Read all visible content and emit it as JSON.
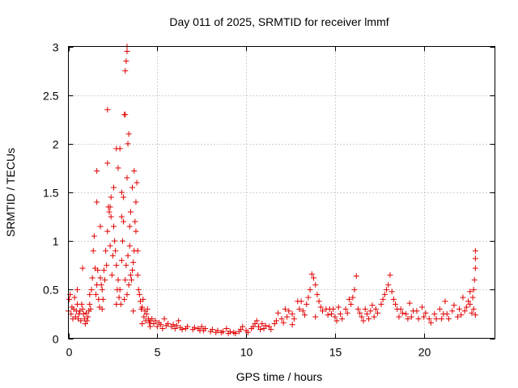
{
  "chart_data": {
    "type": "scatter",
    "title": "Day 011 of 2025, SRMTID for receiver lmmf",
    "xlabel": "GPS time / hours",
    "ylabel": "SRMTID / TECUs",
    "xlim": [
      0,
      24
    ],
    "ylim": [
      0,
      3
    ],
    "grid": true,
    "x_ticks": [
      0,
      5,
      10,
      15,
      20
    ],
    "x_tick_labels": [
      "0",
      "5",
      "10",
      "15",
      "20"
    ],
    "y_ticks": [
      0,
      0.5,
      1,
      1.5,
      2,
      2.5,
      3
    ],
    "y_tick_labels": [
      "0",
      "0.5",
      "1",
      "1.5",
      "2",
      "2.5",
      "3"
    ],
    "marker": "+",
    "color": "#e00000",
    "series": [
      {
        "name": "SRMTID",
        "points": [
          [
            0.0,
            0.28
          ],
          [
            0.1,
            0.45
          ],
          [
            0.2,
            0.32
          ],
          [
            0.3,
            0.3
          ],
          [
            0.4,
            0.22
          ],
          [
            0.5,
            0.35
          ],
          [
            0.6,
            0.25
          ],
          [
            0.7,
            0.18
          ],
          [
            0.8,
            0.3
          ],
          [
            0.9,
            0.2
          ],
          [
            1.0,
            0.26
          ],
          [
            1.1,
            0.22
          ],
          [
            1.2,
            0.35
          ],
          [
            1.3,
            0.5
          ],
          [
            1.4,
            0.9
          ],
          [
            1.5,
            0.72
          ],
          [
            1.6,
            0.55
          ],
          [
            1.7,
            0.4
          ],
          [
            1.8,
            0.62
          ],
          [
            1.9,
            0.5
          ],
          [
            2.0,
            0.7
          ],
          [
            2.1,
            0.9
          ],
          [
            2.2,
            1.1
          ],
          [
            2.3,
            1.3
          ],
          [
            2.4,
            1.45
          ],
          [
            2.5,
            0.85
          ],
          [
            2.6,
            1.0
          ],
          [
            2.7,
            0.75
          ],
          [
            2.8,
            0.6
          ],
          [
            2.9,
            0.5
          ],
          [
            3.0,
            0.8
          ],
          [
            3.1,
            1.2
          ],
          [
            3.2,
            0.6
          ],
          [
            3.3,
            0.45
          ],
          [
            3.4,
            0.55
          ],
          [
            3.5,
            0.65
          ],
          [
            3.6,
            0.7
          ],
          [
            3.7,
            0.9
          ],
          [
            3.8,
            1.4
          ],
          [
            3.9,
            0.65
          ],
          [
            4.0,
            0.45
          ],
          [
            4.1,
            0.3
          ],
          [
            4.2,
            0.4
          ],
          [
            4.3,
            0.28
          ],
          [
            4.4,
            0.25
          ],
          [
            4.5,
            0.2
          ],
          [
            4.6,
            0.18
          ],
          [
            4.8,
            0.15
          ],
          [
            5.0,
            0.12
          ],
          [
            5.2,
            0.14
          ],
          [
            5.5,
            0.13
          ],
          [
            5.8,
            0.12
          ],
          [
            6.0,
            0.1
          ],
          [
            6.3,
            0.11
          ],
          [
            6.6,
            0.1
          ],
          [
            7.0,
            0.09
          ],
          [
            7.3,
            0.1
          ],
          [
            7.6,
            0.08
          ],
          [
            8.0,
            0.07
          ],
          [
            8.3,
            0.06
          ],
          [
            8.6,
            0.06
          ],
          [
            9.0,
            0.05
          ],
          [
            9.3,
            0.06
          ],
          [
            9.6,
            0.07
          ],
          [
            10.0,
            0.08
          ],
          [
            10.3,
            0.1
          ],
          [
            10.5,
            0.15
          ],
          [
            10.7,
            0.12
          ],
          [
            11.0,
            0.1
          ],
          [
            11.3,
            0.12
          ],
          [
            11.6,
            0.15
          ],
          [
            12.0,
            0.2
          ],
          [
            12.3,
            0.22
          ],
          [
            12.6,
            0.25
          ],
          [
            13.0,
            0.3
          ],
          [
            13.2,
            0.28
          ],
          [
            13.4,
            0.35
          ],
          [
            13.6,
            0.5
          ],
          [
            13.8,
            0.62
          ],
          [
            14.0,
            0.45
          ],
          [
            14.2,
            0.32
          ],
          [
            14.5,
            0.3
          ],
          [
            14.8,
            0.25
          ],
          [
            15.0,
            0.22
          ],
          [
            15.3,
            0.25
          ],
          [
            15.6,
            0.3
          ],
          [
            15.9,
            0.35
          ],
          [
            16.1,
            0.5
          ],
          [
            16.3,
            0.3
          ],
          [
            16.5,
            0.22
          ],
          [
            16.8,
            0.25
          ],
          [
            17.0,
            0.28
          ],
          [
            17.3,
            0.3
          ],
          [
            17.6,
            0.35
          ],
          [
            17.8,
            0.45
          ],
          [
            18.0,
            0.55
          ],
          [
            18.2,
            0.48
          ],
          [
            18.4,
            0.35
          ],
          [
            18.7,
            0.3
          ],
          [
            19.0,
            0.25
          ],
          [
            19.3,
            0.22
          ],
          [
            19.6,
            0.28
          ],
          [
            20.0,
            0.22
          ],
          [
            20.3,
            0.2
          ],
          [
            20.6,
            0.25
          ],
          [
            21.0,
            0.2
          ],
          [
            21.3,
            0.25
          ],
          [
            21.6,
            0.28
          ],
          [
            22.0,
            0.3
          ],
          [
            22.3,
            0.28
          ],
          [
            22.6,
            0.35
          ],
          [
            22.8,
            0.3
          ],
          [
            0.05,
            0.4
          ],
          [
            0.15,
            0.25
          ],
          [
            0.25,
            0.2
          ],
          [
            0.35,
            0.42
          ],
          [
            0.45,
            0.28
          ],
          [
            0.55,
            0.2
          ],
          [
            0.65,
            0.28
          ],
          [
            0.75,
            0.35
          ],
          [
            0.85,
            0.25
          ],
          [
            0.95,
            0.15
          ],
          [
            1.05,
            0.18
          ],
          [
            1.15,
            0.28
          ],
          [
            1.25,
            0.3
          ],
          [
            1.35,
            0.62
          ],
          [
            1.45,
            1.05
          ],
          [
            1.55,
            0.45
          ],
          [
            1.65,
            0.7
          ],
          [
            1.75,
            0.32
          ],
          [
            1.85,
            0.55
          ],
          [
            1.95,
            0.4
          ],
          [
            2.05,
            0.6
          ],
          [
            2.15,
            0.75
          ],
          [
            2.25,
            1.35
          ],
          [
            2.35,
            0.95
          ],
          [
            2.45,
            0.65
          ],
          [
            2.55,
            1.15
          ],
          [
            2.65,
            0.9
          ],
          [
            2.75,
            0.5
          ],
          [
            2.85,
            0.42
          ],
          [
            2.95,
            0.35
          ],
          [
            3.05,
            1.0
          ],
          [
            3.15,
            0.4
          ],
          [
            3.25,
            0.75
          ],
          [
            3.35,
            0.85
          ],
          [
            3.45,
            0.95
          ],
          [
            3.55,
            0.6
          ],
          [
            3.65,
            0.78
          ],
          [
            3.75,
            1.2
          ],
          [
            3.85,
            1.6
          ],
          [
            3.95,
            0.5
          ],
          [
            4.05,
            0.38
          ],
          [
            4.15,
            0.32
          ],
          [
            4.25,
            0.22
          ],
          [
            4.35,
            0.18
          ],
          [
            4.45,
            0.3
          ],
          [
            4.55,
            0.16
          ],
          [
            4.7,
            0.2
          ],
          [
            4.9,
            0.18
          ],
          [
            5.1,
            0.16
          ],
          [
            5.3,
            0.1
          ],
          [
            5.6,
            0.15
          ],
          [
            5.9,
            0.14
          ],
          [
            6.1,
            0.13
          ],
          [
            6.4,
            0.09
          ],
          [
            6.7,
            0.12
          ],
          [
            7.1,
            0.11
          ],
          [
            7.4,
            0.08
          ],
          [
            7.7,
            0.1
          ],
          [
            8.1,
            0.09
          ],
          [
            8.4,
            0.08
          ],
          [
            8.7,
            0.07
          ],
          [
            9.1,
            0.07
          ],
          [
            9.4,
            0.05
          ],
          [
            9.7,
            0.09
          ],
          [
            10.1,
            0.06
          ],
          [
            10.4,
            0.12
          ],
          [
            10.6,
            0.18
          ],
          [
            10.8,
            0.09
          ],
          [
            11.1,
            0.13
          ],
          [
            11.4,
            0.09
          ],
          [
            11.7,
            0.18
          ],
          [
            12.1,
            0.16
          ],
          [
            12.4,
            0.28
          ],
          [
            12.7,
            0.2
          ],
          [
            13.1,
            0.38
          ],
          [
            13.3,
            0.24
          ],
          [
            13.5,
            0.42
          ],
          [
            13.7,
            0.66
          ],
          [
            13.9,
            0.55
          ],
          [
            14.1,
            0.38
          ],
          [
            14.3,
            0.28
          ],
          [
            14.6,
            0.24
          ],
          [
            14.9,
            0.3
          ],
          [
            15.1,
            0.18
          ],
          [
            15.4,
            0.2
          ],
          [
            15.7,
            0.26
          ],
          [
            16.0,
            0.42
          ],
          [
            16.2,
            0.64
          ],
          [
            16.4,
            0.26
          ],
          [
            16.6,
            0.18
          ],
          [
            16.9,
            0.2
          ],
          [
            17.1,
            0.34
          ],
          [
            17.4,
            0.26
          ],
          [
            17.7,
            0.4
          ],
          [
            17.9,
            0.5
          ],
          [
            18.1,
            0.65
          ],
          [
            18.3,
            0.4
          ],
          [
            18.5,
            0.3
          ],
          [
            18.8,
            0.26
          ],
          [
            19.1,
            0.2
          ],
          [
            19.4,
            0.28
          ],
          [
            19.7,
            0.2
          ],
          [
            20.1,
            0.26
          ],
          [
            20.4,
            0.16
          ],
          [
            20.7,
            0.2
          ],
          [
            21.1,
            0.25
          ],
          [
            21.4,
            0.2
          ],
          [
            21.7,
            0.34
          ],
          [
            22.1,
            0.24
          ],
          [
            22.4,
            0.32
          ],
          [
            22.7,
            0.26
          ],
          [
            22.9,
            0.24
          ],
          [
            1.6,
            1.72
          ],
          [
            1.6,
            1.4
          ],
          [
            1.8,
            1.15
          ],
          [
            2.2,
            1.8
          ],
          [
            2.2,
            2.35
          ],
          [
            2.4,
            1.25
          ],
          [
            2.7,
            1.95
          ],
          [
            2.8,
            1.75
          ],
          [
            2.9,
            1.95
          ],
          [
            3.0,
            1.5
          ],
          [
            3.1,
            1.45
          ],
          [
            3.15,
            2.3
          ],
          [
            3.2,
            2.75
          ],
          [
            3.25,
            2.85
          ],
          [
            3.3,
            2.95
          ],
          [
            3.3,
            3.0
          ],
          [
            3.2,
            2.3
          ],
          [
            3.3,
            1.65
          ],
          [
            3.35,
            2.0
          ],
          [
            3.4,
            2.1
          ],
          [
            3.5,
            1.3
          ],
          [
            3.6,
            1.55
          ],
          [
            3.7,
            1.72
          ],
          [
            3.8,
            1.1
          ],
          [
            3.9,
            0.9
          ],
          [
            2.55,
            1.55
          ],
          [
            2.35,
            1.35
          ],
          [
            3.0,
            1.25
          ],
          [
            3.45,
            1.15
          ],
          [
            22.9,
            0.9
          ],
          [
            22.9,
            0.82
          ],
          [
            22.9,
            0.72
          ],
          [
            22.85,
            0.6
          ],
          [
            22.8,
            0.5
          ],
          [
            22.75,
            0.42
          ],
          [
            22.6,
            0.48
          ],
          [
            22.5,
            0.38
          ],
          [
            22.2,
            0.42
          ],
          [
            0.5,
            0.5
          ],
          [
            0.8,
            0.72
          ],
          [
            1.2,
            0.45
          ],
          [
            1.9,
            0.3
          ],
          [
            2.7,
            0.35
          ],
          [
            3.65,
            0.28
          ],
          [
            4.15,
            0.15
          ],
          [
            4.6,
            0.12
          ],
          [
            5.4,
            0.2
          ],
          [
            6.2,
            0.18
          ],
          [
            7.5,
            0.12
          ],
          [
            8.9,
            0.1
          ],
          [
            9.8,
            0.12
          ],
          [
            10.9,
            0.15
          ],
          [
            12.2,
            0.3
          ],
          [
            12.9,
            0.38
          ],
          [
            14.7,
            0.3
          ],
          [
            15.2,
            0.32
          ],
          [
            17.2,
            0.22
          ],
          [
            19.9,
            0.32
          ],
          [
            20.9,
            0.3
          ],
          [
            21.9,
            0.22
          ],
          [
            11.8,
            0.26
          ],
          [
            12.6,
            0.14
          ],
          [
            13.9,
            0.22
          ],
          [
            15.8,
            0.4
          ],
          [
            16.7,
            0.3
          ],
          [
            18.6,
            0.22
          ],
          [
            19.2,
            0.36
          ],
          [
            21.2,
            0.38
          ]
        ]
      }
    ]
  }
}
